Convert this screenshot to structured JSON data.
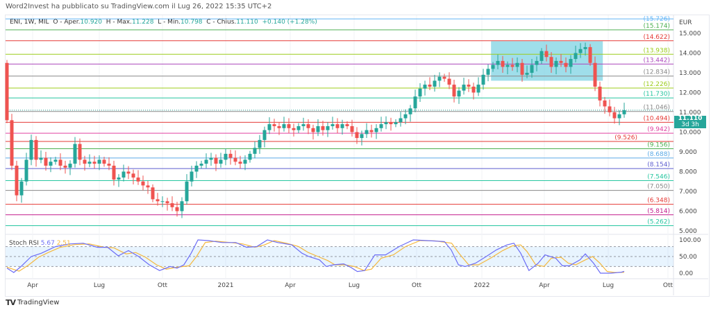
{
  "header": {
    "published": "Word2Invest ha pubblicato su TradingView.com il Lug 26, 2022 15:35 UTC+2"
  },
  "legend": {
    "symbol": "ENI, 1W, MIL",
    "o_label": "O - Aper.",
    "open": "10.920",
    "h_label": "H - Max.",
    "high": "11.228",
    "l_label": "L - Min.",
    "low": "10.798",
    "c_label": "C - Chius.",
    "close": "11.110",
    "change": "+0.140 (+1.28%)"
  },
  "price_axis": {
    "currency": "EUR",
    "ticks": [
      "15.000",
      "14.000",
      "13.000",
      "12.000",
      "11.000",
      "10.000",
      "9.000",
      "8.000",
      "7.000",
      "6.000",
      "5.000"
    ],
    "current": "11.110",
    "countdown": "3d 3h"
  },
  "time_axis": [
    "Apr",
    "Lug",
    "Ott",
    "2021",
    "Apr",
    "Lug",
    "Ott",
    "2022",
    "Apr",
    "Lug",
    "Ott"
  ],
  "brand": "TradingView",
  "colors": {
    "up": "#26a69a",
    "down": "#ef5350",
    "k": "#6b6cf6",
    "d": "#f5b83d",
    "box": "#7fd3e3"
  },
  "chart_data": {
    "type": "candlestick",
    "interval": "1W",
    "ylim": [
      4.9,
      15.9
    ],
    "levels": [
      {
        "value": 15.726,
        "label": "(15.726)",
        "color": "#64b5f6"
      },
      {
        "value": 15.174,
        "label": "(15.174)",
        "color": "#4caf50"
      },
      {
        "value": 14.622,
        "label": "(14.622)",
        "color": "#e53935"
      },
      {
        "value": 13.938,
        "label": "(13.938)",
        "color": "#9ccc1a"
      },
      {
        "value": 13.442,
        "label": "(13.442)",
        "color": "#ab47bc"
      },
      {
        "value": 12.834,
        "label": "(12.834)",
        "color": "#888888"
      },
      {
        "value": 12.226,
        "label": "(12.226)",
        "color": "#9ccc1a"
      },
      {
        "value": 11.73,
        "label": "(11.730)",
        "color": "#26c6a0"
      },
      {
        "value": 11.046,
        "label": "(11.046)",
        "color": "#888888"
      },
      {
        "value": 10.494,
        "label": "(10.494)",
        "color": "#e53935"
      },
      {
        "value": 9.942,
        "label": "(9.942)",
        "color": "#e040a0"
      },
      {
        "value": 9.526,
        "label": "(9.526)",
        "color": "#e53935"
      },
      {
        "value": 9.156,
        "label": "(9.156)",
        "color": "#4caf50"
      },
      {
        "value": 8.688,
        "label": "(8.688)",
        "color": "#5aa9e6"
      },
      {
        "value": 8.154,
        "label": "(8.154)",
        "color": "#5c5ccf"
      },
      {
        "value": 7.546,
        "label": "(7.546)",
        "color": "#26c6a0"
      },
      {
        "value": 7.05,
        "label": "(7.050)",
        "color": "#888888"
      },
      {
        "value": 6.348,
        "label": "(6.348)",
        "color": "#e53935"
      },
      {
        "value": 5.814,
        "label": "(5.814)",
        "color": "#c2188b"
      },
      {
        "value": 5.262,
        "label": "(5.262)",
        "color": "#26c6a0"
      }
    ],
    "first_open": 13.5,
    "closes": [
      10.6,
      8.3,
      6.8,
      7.5,
      8.6,
      9.6,
      8.6,
      8.7,
      8.3,
      8.5,
      8.6,
      8.3,
      8.2,
      8.4,
      9.4,
      8.6,
      8.4,
      8.5,
      8.4,
      8.6,
      8.4,
      8.3,
      7.6,
      7.7,
      8.0,
      7.9,
      7.7,
      7.5,
      7.3,
      7.2,
      6.6,
      6.5,
      6.5,
      6.4,
      6.2,
      6.0,
      6.5,
      7.5,
      8.0,
      8.3,
      8.4,
      8.6,
      8.7,
      8.4,
      8.6,
      8.9,
      8.7,
      8.5,
      8.4,
      8.6,
      8.9,
      9.2,
      9.6,
      10.1,
      10.4,
      10.3,
      10.2,
      10.4,
      10.2,
      10.1,
      10.3,
      10.4,
      10.2,
      10.0,
      10.3,
      10.1,
      10.3,
      10.4,
      10.2,
      10.4,
      10.3,
      10.0,
      9.7,
      9.9,
      10.1,
      10.0,
      10.2,
      10.4,
      10.5,
      10.4,
      10.5,
      10.7,
      10.9,
      11.2,
      11.8,
      12.2,
      12.4,
      12.3,
      12.6,
      12.8,
      12.7,
      12.4,
      11.8,
      12.1,
      12.4,
      12.3,
      12.0,
      12.4,
      12.9,
      13.2,
      13.4,
      13.6,
      13.3,
      13.4,
      13.3,
      13.5,
      12.9,
      13.0,
      13.4,
      13.6,
      14.1,
      13.8,
      13.3,
      13.6,
      13.5,
      13.3,
      13.7,
      14.0,
      14.2,
      14.3,
      13.5,
      12.3,
      11.6,
      11.3,
      11.0,
      10.7,
      10.9,
      11.11
    ],
    "highlight_box": {
      "week_from": 99.6,
      "week_to": 122.6,
      "price_from": 12.6,
      "price_to": 14.6
    },
    "stoch_rsi": {
      "label": "Stoch RSI",
      "k_value": "5.67",
      "d_value": "2.51",
      "ylim": [
        0,
        100
      ],
      "ticks": [
        "100.00",
        "50.00",
        "0.00"
      ],
      "bands": [
        80,
        50,
        20
      ],
      "k": [
        [
          0,
          15
        ],
        [
          1.4,
          2
        ],
        [
          2.9,
          20
        ],
        [
          5,
          50
        ],
        [
          7.1,
          60
        ],
        [
          10,
          80
        ],
        [
          12.9,
          88
        ],
        [
          15.7,
          90
        ],
        [
          18.6,
          78
        ],
        [
          20.7,
          78
        ],
        [
          22.9,
          52
        ],
        [
          25,
          68
        ],
        [
          27.1,
          50
        ],
        [
          29.3,
          25
        ],
        [
          31.4,
          8
        ],
        [
          33.6,
          20
        ],
        [
          35,
          15
        ],
        [
          36.4,
          25
        ],
        [
          37.9,
          60
        ],
        [
          39.3,
          100
        ],
        [
          41.4,
          98
        ],
        [
          44.3,
          92
        ],
        [
          47.1,
          92
        ],
        [
          49.3,
          78
        ],
        [
          51.4,
          80
        ],
        [
          53.6,
          100
        ],
        [
          55.7,
          92
        ],
        [
          58.6,
          85
        ],
        [
          60.7,
          60
        ],
        [
          62.1,
          50
        ],
        [
          64.3,
          40
        ],
        [
          65.7,
          20
        ],
        [
          67.1,
          25
        ],
        [
          69.3,
          28
        ],
        [
          70.7,
          18
        ],
        [
          72.1,
          5
        ],
        [
          73.6,
          8
        ],
        [
          75.7,
          55
        ],
        [
          77.9,
          55
        ],
        [
          80.7,
          80
        ],
        [
          83.6,
          100
        ],
        [
          86.4,
          98
        ],
        [
          90,
          95
        ],
        [
          91.4,
          70
        ],
        [
          92.9,
          25
        ],
        [
          94.3,
          20
        ],
        [
          96.4,
          30
        ],
        [
          98.6,
          50
        ],
        [
          100.7,
          70
        ],
        [
          102.9,
          85
        ],
        [
          104.3,
          90
        ],
        [
          105.7,
          60
        ],
        [
          107.4,
          8
        ],
        [
          109.3,
          30
        ],
        [
          110.7,
          55
        ],
        [
          112.9,
          45
        ],
        [
          114.3,
          22
        ],
        [
          115.7,
          22
        ],
        [
          117.9,
          40
        ],
        [
          119,
          58
        ],
        [
          120.7,
          30
        ],
        [
          122.1,
          0
        ],
        [
          124.3,
          0
        ],
        [
          126.4,
          3
        ],
        [
          127,
          5.67
        ]
      ],
      "d": [
        [
          0,
          18
        ],
        [
          2.5,
          6
        ],
        [
          4.5,
          25
        ],
        [
          6.5,
          48
        ],
        [
          8.5,
          62
        ],
        [
          11,
          78
        ],
        [
          14,
          86
        ],
        [
          17,
          88
        ],
        [
          20,
          78
        ],
        [
          22,
          76
        ],
        [
          24.5,
          58
        ],
        [
          26.5,
          62
        ],
        [
          28.5,
          48
        ],
        [
          30.8,
          25
        ],
        [
          32.8,
          12
        ],
        [
          35,
          18
        ],
        [
          37.5,
          22
        ],
        [
          39,
          50
        ],
        [
          40.8,
          92
        ],
        [
          43,
          96
        ],
        [
          46,
          92
        ],
        [
          48.5,
          88
        ],
        [
          51,
          78
        ],
        [
          53,
          85
        ],
        [
          55,
          98
        ],
        [
          57.5,
          90
        ],
        [
          60,
          80
        ],
        [
          62,
          62
        ],
        [
          64,
          50
        ],
        [
          66,
          38
        ],
        [
          67.5,
          25
        ],
        [
          69.5,
          25
        ],
        [
          71.5,
          20
        ],
        [
          73.5,
          8
        ],
        [
          75,
          12
        ],
        [
          77,
          45
        ],
        [
          79.5,
          55
        ],
        [
          82,
          80
        ],
        [
          85,
          98
        ],
        [
          88,
          97
        ],
        [
          91.5,
          90
        ],
        [
          93,
          60
        ],
        [
          95,
          25
        ],
        [
          97,
          25
        ],
        [
          99.5,
          45
        ],
        [
          102,
          68
        ],
        [
          104,
          82
        ],
        [
          105.7,
          85
        ],
        [
          107,
          65
        ],
        [
          108.8,
          25
        ],
        [
          110.5,
          20
        ],
        [
          112,
          45
        ],
        [
          114,
          48
        ],
        [
          115.5,
          30
        ],
        [
          117,
          25
        ],
        [
          119,
          40
        ],
        [
          120.5,
          50
        ],
        [
          122,
          30
        ],
        [
          123.5,
          5
        ],
        [
          125,
          2
        ],
        [
          127,
          2.51
        ]
      ]
    }
  }
}
